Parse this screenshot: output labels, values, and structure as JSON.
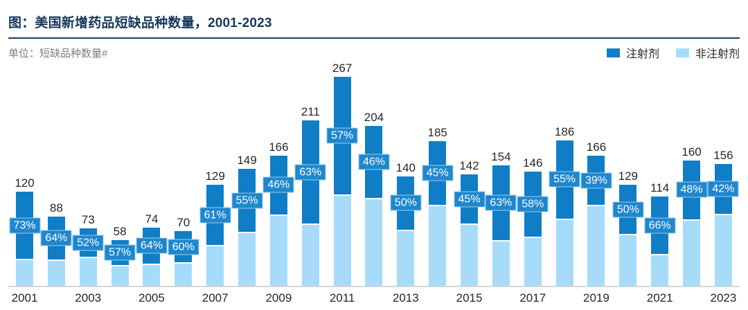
{
  "header": {
    "title": "图：美国新增药品短缺品种数量，2001-2023",
    "subtitle": "单位：短缺品种数量#"
  },
  "legend": {
    "items": [
      {
        "label": "注射剂",
        "color": "#0f7ec6"
      },
      {
        "label": "非注射剂",
        "color": "#a6dcfa"
      }
    ]
  },
  "colors": {
    "injectable_bar": "#0f7ec6",
    "non_injectable_bar": "#a6dcfa",
    "pct_label_box": "#1e87ce",
    "title_navy": "#17375d",
    "axis_line": "#d6d6d6",
    "value_label_text": "#262626",
    "subtitle_gray": "#7f7f7f"
  },
  "chart_data": {
    "type": "bar",
    "stacked": true,
    "title": "美国新增药品短缺品种数量, 2001-2023",
    "unit_label": "短缺品种数量#",
    "categories": [
      2001,
      2002,
      2003,
      2004,
      2005,
      2006,
      2007,
      2008,
      2009,
      2010,
      2011,
      2012,
      2013,
      2014,
      2015,
      2016,
      2017,
      2018,
      2019,
      2020,
      2021,
      2022,
      2023
    ],
    "totals": [
      120,
      88,
      73,
      58,
      74,
      70,
      129,
      149,
      166,
      211,
      267,
      204,
      140,
      185,
      142,
      154,
      146,
      186,
      166,
      129,
      114,
      160,
      156
    ],
    "series": [
      {
        "name": "注射剂",
        "color": "#0f7ec6",
        "share_pct": [
          73,
          64,
          52,
          57,
          64,
          60,
          61,
          55,
          46,
          63,
          57,
          46,
          50,
          45,
          45,
          63,
          58,
          55,
          39,
          50,
          66,
          48,
          42
        ]
      },
      {
        "name": "非注射剂",
        "color": "#a6dcfa",
        "share_pct": [
          27,
          36,
          48,
          43,
          36,
          40,
          39,
          45,
          54,
          37,
          43,
          54,
          50,
          55,
          55,
          37,
          42,
          45,
          61,
          50,
          34,
          52,
          58
        ]
      }
    ],
    "bar_value_labels": "totals shown above each bar",
    "inner_labels": "注射剂 share % shown in box centered on dark segment",
    "x_tick_labels": [
      "2001",
      "2003",
      "2005",
      "2007",
      "2009",
      "2011",
      "2013",
      "2015",
      "2017",
      "2019",
      "2021",
      "2023"
    ],
    "ylim": [
      0,
      280
    ],
    "grid": false,
    "legend_position": "top-right"
  }
}
